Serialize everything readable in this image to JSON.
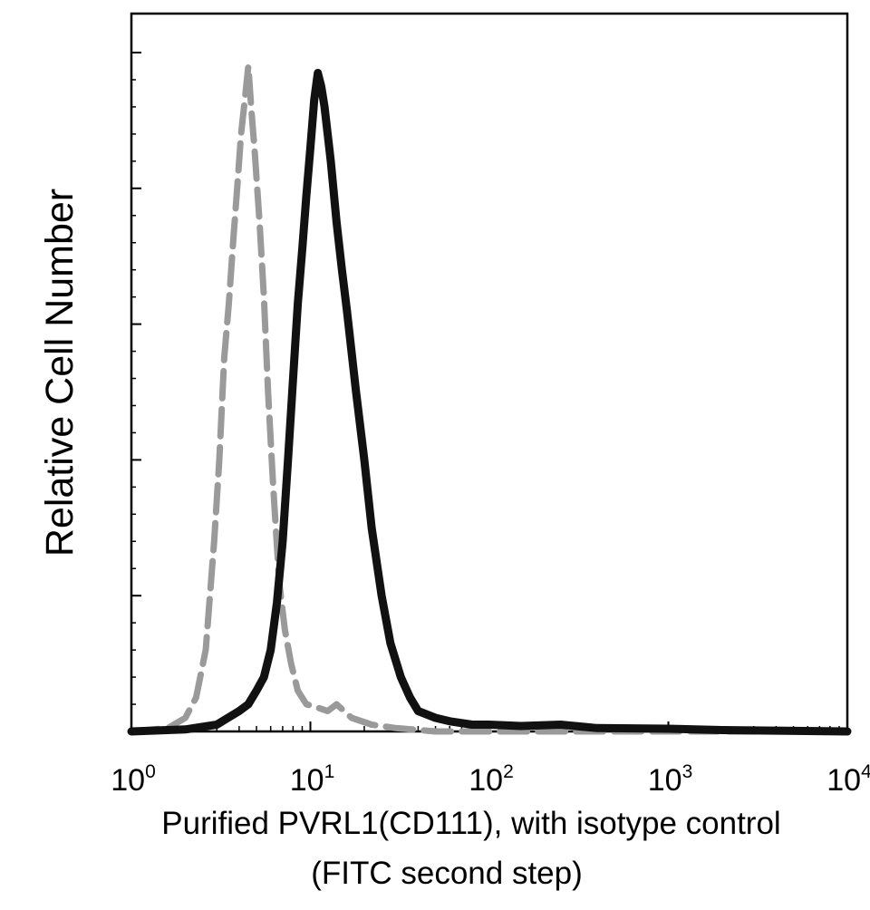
{
  "chart_data": {
    "type": "line",
    "title": "",
    "ylabel": "Relative Cell Number",
    "xlabel_lines": [
      "Purified PVRL1(CD111), with isotype control",
      "(FITC second step)"
    ],
    "x_scale": "log",
    "xlim": [
      1,
      10000
    ],
    "ylim": [
      0,
      1
    ],
    "x_ticks": [
      {
        "base": "10",
        "exp": "0",
        "value": 1
      },
      {
        "base": "10",
        "exp": "1",
        "value": 10
      },
      {
        "base": "10",
        "exp": "2",
        "value": 100
      },
      {
        "base": "10",
        "exp": "3",
        "value": 1000
      },
      {
        "base": "10",
        "exp": "4",
        "value": 10000
      }
    ],
    "y_major_ticks": [
      0.2,
      0.4,
      0.6,
      0.8,
      1.0
    ],
    "grid": false,
    "legend": "none",
    "series": [
      {
        "color": "#9a9a9a",
        "style": "dashed",
        "x": [
          1.0,
          1.6,
          2.0,
          2.3,
          2.6,
          2.9,
          3.1,
          3.3,
          3.5,
          3.7,
          3.9,
          4.1,
          4.3,
          4.5,
          4.7,
          4.9,
          5.2,
          5.5,
          5.8,
          6.2,
          6.7,
          7.2,
          7.8,
          8.5,
          9.5,
          11,
          12.5,
          14,
          17,
          22,
          30,
          50,
          100,
          10000
        ],
        "y": [
          0.0,
          0.005,
          0.02,
          0.05,
          0.12,
          0.28,
          0.4,
          0.55,
          0.63,
          0.72,
          0.8,
          0.88,
          0.93,
          0.98,
          0.91,
          0.85,
          0.75,
          0.64,
          0.5,
          0.36,
          0.22,
          0.15,
          0.1,
          0.06,
          0.04,
          0.035,
          0.03,
          0.04,
          0.02,
          0.01,
          0.005,
          0.0,
          0.0,
          0.0
        ]
      },
      {
        "color": "#111111",
        "style": "solid",
        "x": [
          1.0,
          2.0,
          3.0,
          4.0,
          4.5,
          5.0,
          5.5,
          6.0,
          6.5,
          7.0,
          7.5,
          8.0,
          8.5,
          9.0,
          9.5,
          10,
          10.5,
          11,
          11.5,
          12,
          13,
          14,
          15,
          16,
          18,
          20,
          22,
          25,
          28,
          32,
          36,
          40,
          50,
          60,
          80,
          100,
          150,
          250,
          400,
          1000,
          2000,
          10000
        ],
        "y": [
          0.0,
          0.003,
          0.01,
          0.03,
          0.04,
          0.06,
          0.08,
          0.12,
          0.19,
          0.28,
          0.4,
          0.52,
          0.63,
          0.71,
          0.79,
          0.86,
          0.93,
          0.97,
          0.95,
          0.92,
          0.84,
          0.75,
          0.68,
          0.62,
          0.5,
          0.4,
          0.3,
          0.2,
          0.13,
          0.08,
          0.05,
          0.03,
          0.02,
          0.015,
          0.01,
          0.01,
          0.008,
          0.01,
          0.005,
          0.004,
          0.002,
          0.0
        ]
      }
    ]
  }
}
